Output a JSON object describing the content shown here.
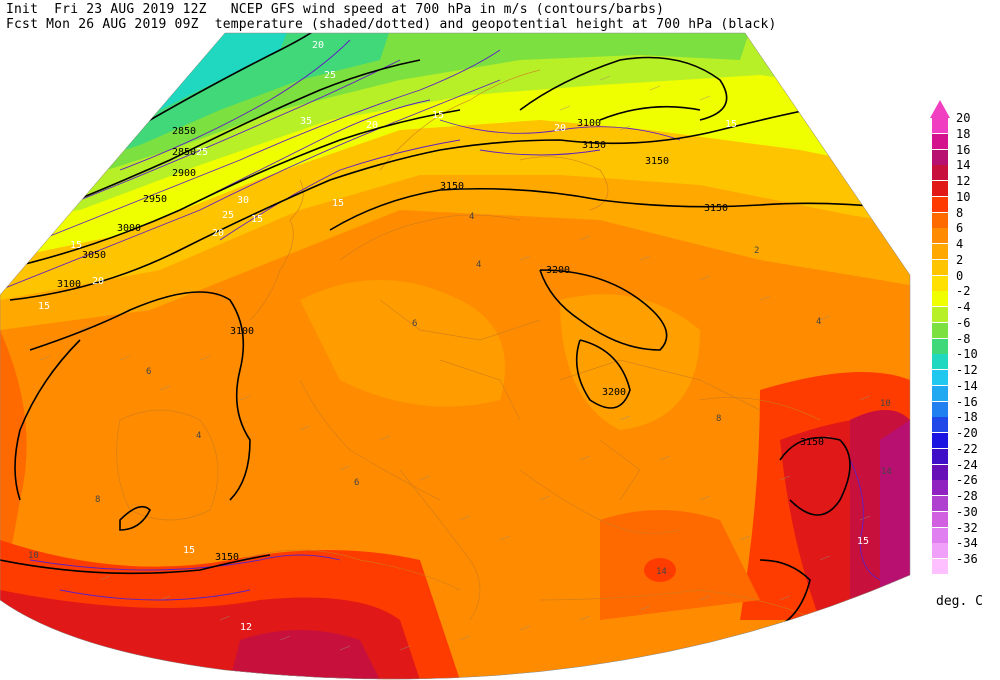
{
  "header": {
    "line1": "Init  Fri 23 AUG 2019 12Z   NCEP GFS wind speed at 700 hPa in m/s (contours/barbs)",
    "line2": "Fcst Mon 26 AUG 2019 09Z  temperature (shaded/dotted) and geopotential height at 700 hPa (black)"
  },
  "colorbar": {
    "units": "deg. C",
    "levels": [
      {
        "label": "20",
        "color": "#f03fc0"
      },
      {
        "label": "18",
        "color": "#d4148c"
      },
      {
        "label": "16",
        "color": "#b81070"
      },
      {
        "label": "14",
        "color": "#c8103c"
      },
      {
        "label": "12",
        "color": "#e01818"
      },
      {
        "label": "10",
        "color": "#ff3c00"
      },
      {
        "label": "8",
        "color": "#ff6a00"
      },
      {
        "label": "6",
        "color": "#ff8c00"
      },
      {
        "label": "4",
        "color": "#ffa800"
      },
      {
        "label": "2",
        "color": "#ffc400"
      },
      {
        "label": "0",
        "color": "#ffe000"
      },
      {
        "label": "-2",
        "color": "#f0ff00"
      },
      {
        "label": "-4",
        "color": "#b8f028"
      },
      {
        "label": "-6",
        "color": "#7ce040"
      },
      {
        "label": "-8",
        "color": "#40d878"
      },
      {
        "label": "-10",
        "color": "#20d8c0"
      },
      {
        "label": "-12",
        "color": "#20c8f0"
      },
      {
        "label": "-14",
        "color": "#20a8f0"
      },
      {
        "label": "-16",
        "color": "#2080f0"
      },
      {
        "label": "-18",
        "color": "#2048e8"
      },
      {
        "label": "-20",
        "color": "#1c14e0"
      },
      {
        "label": "-22",
        "color": "#4010c8"
      },
      {
        "label": "-24",
        "color": "#6810b8"
      },
      {
        "label": "-26",
        "color": "#9020c0"
      },
      {
        "label": "-28",
        "color": "#b040d0"
      },
      {
        "label": "-30",
        "color": "#d060e0"
      },
      {
        "label": "-32",
        "color": "#e080f0"
      },
      {
        "label": "-34",
        "color": "#f0a0f8"
      },
      {
        "label": "-36",
        "color": "#ffc0ff"
      }
    ]
  },
  "map": {
    "height_labels": [
      "2850",
      "2850",
      "2900",
      "2950",
      "3000",
      "3050",
      "3100",
      "3150",
      "3150",
      "3150",
      "3200",
      "3200",
      "3150",
      "3100",
      "3100",
      "3150",
      "3150"
    ],
    "wind_labels": [
      "20",
      "25",
      "35",
      "20",
      "25",
      "30",
      "25",
      "20",
      "15",
      "15",
      "15",
      "20",
      "15",
      "15",
      "15",
      "15",
      "20",
      "15",
      "12"
    ],
    "temp_labels": [
      "4",
      "4",
      "2",
      "4",
      "6",
      "6",
      "8",
      "6",
      "8",
      "4",
      "10",
      "14",
      "10",
      "14"
    ]
  }
}
